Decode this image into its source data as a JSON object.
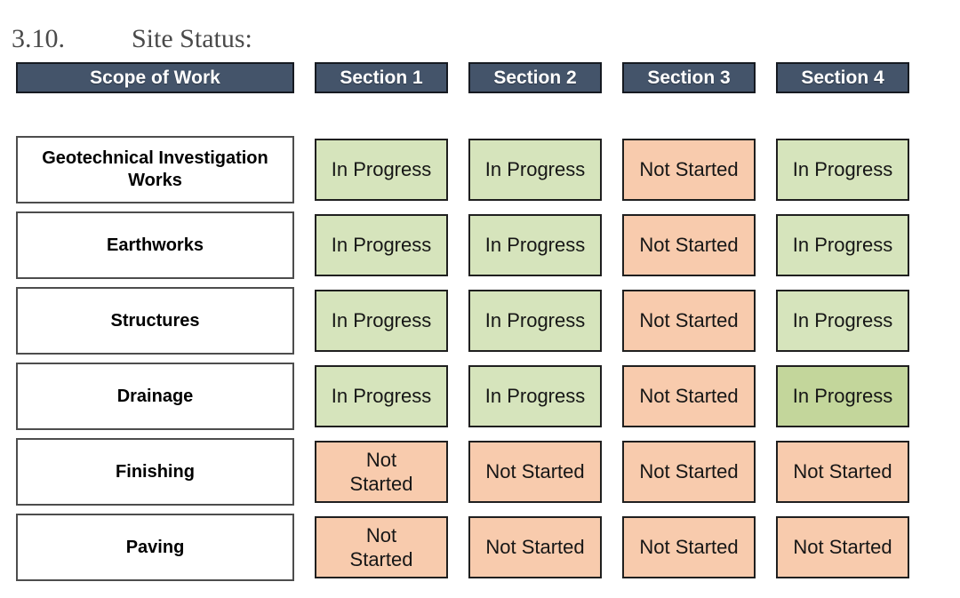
{
  "heading": {
    "number": "3.10.",
    "title": "Site Status:"
  },
  "table": {
    "scope_header": "Scope of Work",
    "section_headers": [
      "Section 1",
      "Section 2",
      "Section 3",
      "Section 4"
    ],
    "rows": [
      {
        "scope": "Geotechnical Investigation\nWorks",
        "statuses": [
          {
            "label": "In Progress",
            "state": "in-progress"
          },
          {
            "label": "In Progress",
            "state": "in-progress"
          },
          {
            "label": "Not Started",
            "state": "not-started"
          },
          {
            "label": "In Progress",
            "state": "in-progress"
          }
        ]
      },
      {
        "scope": "Earthworks",
        "statuses": [
          {
            "label": "In Progress",
            "state": "in-progress"
          },
          {
            "label": "In Progress",
            "state": "in-progress"
          },
          {
            "label": "Not Started",
            "state": "not-started"
          },
          {
            "label": "In Progress",
            "state": "in-progress"
          }
        ]
      },
      {
        "scope": "Structures",
        "statuses": [
          {
            "label": "In Progress",
            "state": "in-progress"
          },
          {
            "label": "In Progress",
            "state": "in-progress"
          },
          {
            "label": "Not Started",
            "state": "not-started"
          },
          {
            "label": "In Progress",
            "state": "in-progress"
          }
        ]
      },
      {
        "scope": "Drainage",
        "statuses": [
          {
            "label": "In Progress",
            "state": "in-progress"
          },
          {
            "label": "In Progress",
            "state": "in-progress"
          },
          {
            "label": "Not Started",
            "state": "not-started"
          },
          {
            "label": "In Progress",
            "state": "in-progress-dark"
          }
        ]
      },
      {
        "scope": "Finishing",
        "statuses": [
          {
            "label": "Not\nStarted",
            "state": "not-started"
          },
          {
            "label": "Not Started",
            "state": "not-started"
          },
          {
            "label": "Not Started",
            "state": "not-started"
          },
          {
            "label": "Not Started",
            "state": "not-started"
          }
        ]
      },
      {
        "scope": "Paving",
        "statuses": [
          {
            "label": "Not\nStarted",
            "state": "not-started"
          },
          {
            "label": "Not Started",
            "state": "not-started"
          },
          {
            "label": "Not Started",
            "state": "not-started"
          },
          {
            "label": "Not Started",
            "state": "not-started"
          }
        ]
      }
    ]
  },
  "colors": {
    "header_bg": "#44546a",
    "header_border": "#161a21",
    "header_text": "#ffffff",
    "in_progress_bg": "#d6e4bc",
    "in_progress_dark_bg": "#c3d69b",
    "not_started_bg": "#f8cbad",
    "cell_border": "#1f1f1f",
    "scope_border": "#4d4d4d",
    "title_text": "#4a4a4a"
  }
}
